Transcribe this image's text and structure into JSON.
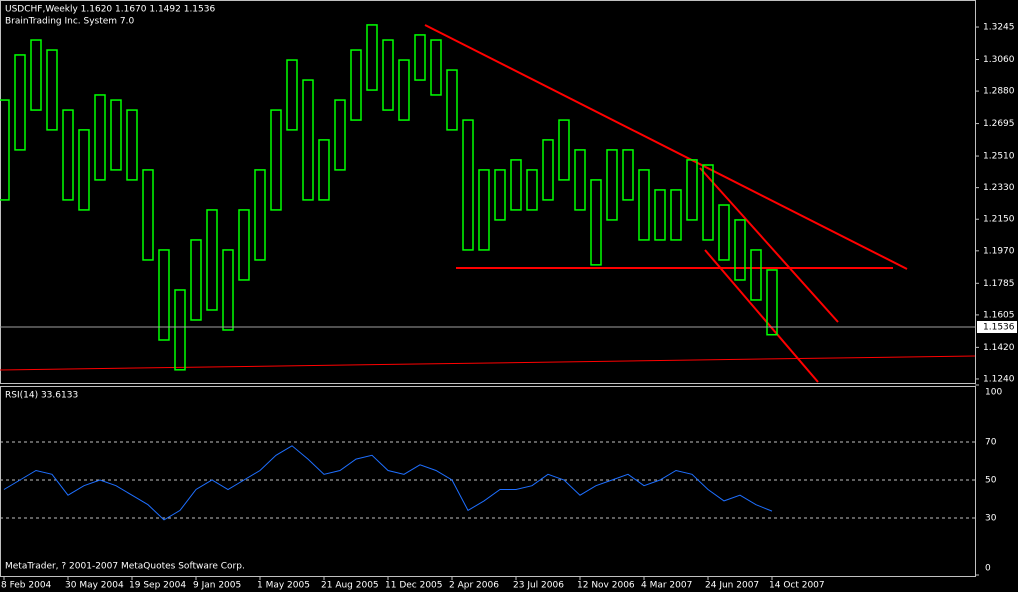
{
  "header": {
    "title": "USDCHF,Weekly  1.1620 1.1670 1.1492 1.1536",
    "indicator": "BrainTrading Inc. System 7.0",
    "copyright": "MetaTrader, ? 2001-2007 MetaQuotes Software Corp."
  },
  "chart_data": [
    {
      "type": "highlow",
      "color": "#00ff00",
      "categories": [
        "8 Feb 2004",
        null,
        null,
        null,
        "30 May 2004",
        null,
        null,
        null,
        "19 Sep 2004",
        null,
        null,
        null,
        "9 Jan 2005",
        null,
        null,
        null,
        "1 May 2005",
        null,
        null,
        null,
        "21 Aug 2005",
        null,
        null,
        null,
        "11 Dec 2005",
        null,
        null,
        null,
        "2 Apr 2006",
        null,
        null,
        null,
        "23 Jul 2006",
        null,
        null,
        null,
        "12 Nov 2006",
        null,
        null,
        null,
        "4 Mar 2007",
        null,
        null,
        null,
        "24 Jun 2007",
        null,
        null,
        null,
        "14 Oct 2007"
      ],
      "high": [
        1.2829,
        1.3086,
        1.3171,
        1.3114,
        1.2772,
        1.2659,
        1.2858,
        1.2829,
        1.2772,
        1.2431,
        1.1975,
        1.1747,
        1.2032,
        1.2203,
        1.1975,
        1.2203,
        1.2431,
        1.2772,
        1.3057,
        1.2943,
        1.2602,
        1.2829,
        1.3114,
        1.3257,
        1.3171,
        1.3057,
        1.32,
        1.3171,
        1.3,
        1.2715,
        1.2431,
        1.2431,
        1.2488,
        1.2431,
        1.2602,
        1.2715,
        1.2545,
        1.2374,
        1.2545,
        1.2545,
        1.2431,
        1.2317,
        1.2317,
        1.2488,
        1.2459,
        1.2231,
        1.2146,
        1.1975,
        1.1861
      ],
      "low": [
        1.226,
        1.2545,
        1.2772,
        1.2659,
        1.226,
        1.2203,
        1.2374,
        1.2431,
        1.2374,
        1.1918,
        1.1462,
        1.1292,
        1.1576,
        1.1633,
        1.1519,
        1.1804,
        1.1918,
        1.2203,
        1.2659,
        1.226,
        1.226,
        1.2431,
        1.2715,
        1.2886,
        1.2772,
        1.2715,
        1.2943,
        1.2858,
        1.2659,
        1.1975,
        1.1975,
        1.2146,
        1.2203,
        1.2203,
        1.226,
        1.2374,
        1.2203,
        1.189,
        1.2146,
        1.226,
        1.2032,
        1.2032,
        1.2032,
        1.2146,
        1.2032,
        1.1918,
        1.1804,
        1.169,
        1.1492
      ],
      "current_price": {
        "value": 1.1536,
        "label": "1.1536"
      },
      "ylim": [
        1.1217,
        1.3399
      ],
      "yticks": [
        {
          "value": 1.3245,
          "label": "1.3245"
        },
        {
          "value": 1.306,
          "label": "1.3060"
        },
        {
          "value": 1.288,
          "label": "1.2880"
        },
        {
          "value": 1.2695,
          "label": "1.2695"
        },
        {
          "value": 1.251,
          "label": "1.2510"
        },
        {
          "value": 1.233,
          "label": "1.2330"
        },
        {
          "value": 1.215,
          "label": "1.2150"
        },
        {
          "value": 1.197,
          "label": "1.1970"
        },
        {
          "value": 1.1785,
          "label": "1.1785"
        },
        {
          "value": 1.1605,
          "label": "1.1605"
        },
        {
          "value": 1.142,
          "label": "1.1420"
        },
        {
          "value": 1.124,
          "label": "1.1240"
        }
      ]
    },
    {
      "type": "line",
      "title": "RSI(14) 33.6133",
      "color": "#1e6fff",
      "values": [
        45,
        50,
        55,
        53,
        42,
        47,
        50,
        47,
        42,
        37,
        29,
        34,
        45,
        50,
        45,
        50,
        55,
        63,
        68,
        61,
        53,
        55,
        61,
        63,
        55,
        53,
        58,
        55,
        50,
        34,
        39,
        45,
        45,
        47,
        53,
        50,
        42,
        47,
        50,
        53,
        47,
        50,
        55,
        53,
        45,
        39,
        42,
        37,
        33.6133
      ],
      "ylim": [
        0,
        100
      ],
      "yticks": [
        0,
        30,
        50,
        70,
        100
      ],
      "grid": true
    }
  ]
}
